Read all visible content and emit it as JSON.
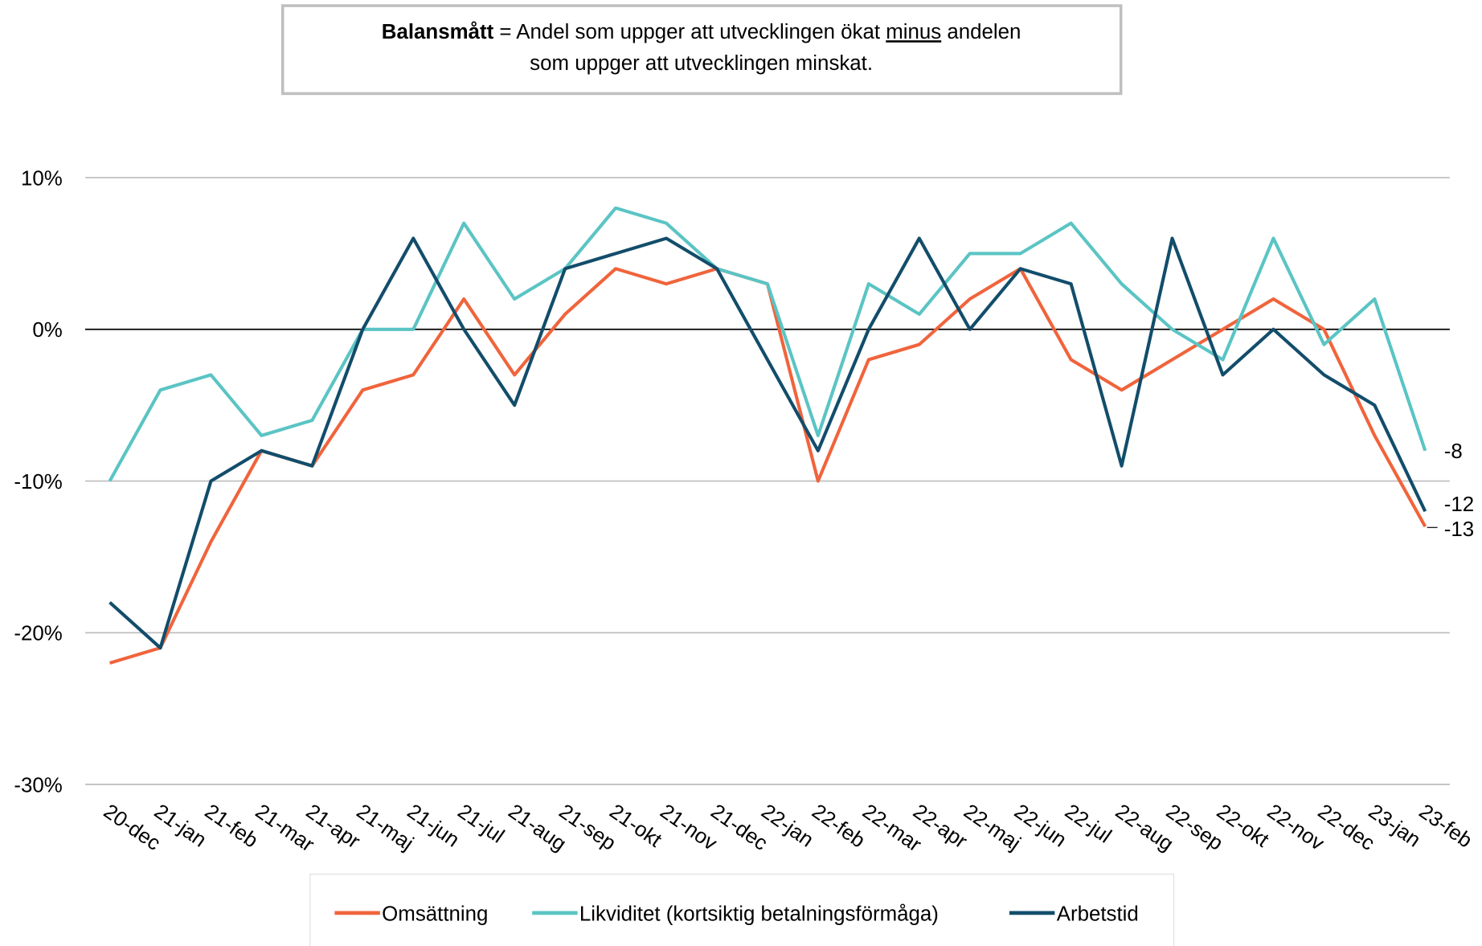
{
  "chart_data": {
    "type": "line",
    "annotation": {
      "bold": "Balansmått",
      "text1": " = Andel som uppger att utvecklingen ökat ",
      "underline": "minus",
      "text2": " andelen",
      "line2": "som uppger att utvecklingen minskat."
    },
    "categories": [
      "20-dec",
      "21-jan",
      "21-feb",
      "21-mar",
      "21-apr",
      "21-maj",
      "21-jun",
      "21-jul",
      "21-aug",
      "21-sep",
      "21-okt",
      "21-nov",
      "21-dec",
      "22-jan",
      "22-feb",
      "22-mar",
      "22-apr",
      "22-maj",
      "22-jun",
      "22-jul",
      "22-aug",
      "22-sep",
      "22-okt",
      "22-nov",
      "22-dec",
      "23-jan",
      "23-feb"
    ],
    "series": [
      {
        "name": "Omsättning",
        "color": "#f0643c",
        "values": [
          -22,
          -21,
          -14,
          -8,
          -9,
          -4,
          -3,
          2,
          -3,
          1,
          4,
          3,
          4,
          3,
          -10,
          -2,
          -1,
          2,
          4,
          -2,
          -4,
          -2,
          0,
          2,
          0,
          -7,
          -13
        ]
      },
      {
        "name": "Likviditet (kortsiktig betalningsförmåga)",
        "color": "#5bc4c4",
        "values": [
          -10,
          -4,
          -3,
          -7,
          -6,
          0,
          0,
          7,
          2,
          4,
          8,
          7,
          4,
          3,
          -7,
          3,
          1,
          5,
          5,
          7,
          3,
          0,
          -2,
          6,
          -1,
          2,
          -8
        ]
      },
      {
        "name": "Arbetstid",
        "color": "#124d6b",
        "values": [
          -18,
          -21,
          -10,
          -8,
          -9,
          0,
          6,
          0,
          -5,
          4,
          5,
          6,
          4,
          -2,
          -8,
          0,
          6,
          0,
          4,
          3,
          -9,
          6,
          -3,
          0,
          -3,
          -5,
          -12
        ]
      }
    ],
    "ylim": [
      -30,
      10
    ],
    "yticks": [
      {
        "value": -30,
        "label": "-30%"
      },
      {
        "value": -20,
        "label": "-20%"
      },
      {
        "value": -10,
        "label": "-10%"
      },
      {
        "value": 0,
        "label": "0%"
      },
      {
        "value": 10,
        "label": "10%"
      }
    ],
    "grid": true,
    "legend": "bottom"
  }
}
